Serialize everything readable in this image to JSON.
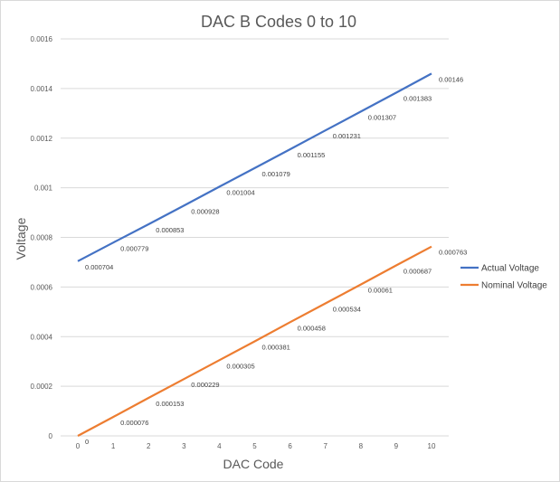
{
  "chart_data": {
    "type": "line",
    "title": "DAC B Codes 0 to 10",
    "xlabel": "DAC Code",
    "ylabel": "Voltage",
    "x": [
      0,
      1,
      2,
      3,
      4,
      5,
      6,
      7,
      8,
      9,
      10
    ],
    "x_tick_labels": [
      "0",
      "1",
      "2",
      "3",
      "4",
      "5",
      "6",
      "7",
      "8",
      "9",
      "10"
    ],
    "y_tick_labels": [
      "0",
      "0.0002",
      "0.0004",
      "0.0006",
      "0.0008",
      "0.001",
      "0.0012",
      "0.0014",
      "0.0016"
    ],
    "ylim": [
      0,
      0.0016
    ],
    "xlim": [
      0,
      10
    ],
    "grid": "horizontal",
    "legend_position": "right",
    "series": [
      {
        "name": "Actual Voltage",
        "color": "#4472c4",
        "values": [
          0.000704,
          0.000779,
          0.000853,
          0.000928,
          0.001004,
          0.001079,
          0.001155,
          0.001231,
          0.001307,
          0.001383,
          0.00146
        ],
        "data_labels": [
          "0.000704",
          "0.000779",
          "0.000853",
          "0.000928",
          "0.001004",
          "0.001079",
          "0.001155",
          "0.001231",
          "0.001307",
          "0.001383",
          "0.00146"
        ]
      },
      {
        "name": "Nominal Voltage",
        "color": "#ed7d31",
        "values": [
          0,
          7.6e-05,
          0.000153,
          0.000229,
          0.000305,
          0.000381,
          0.000458,
          0.000534,
          0.00061,
          0.000687,
          0.000763
        ],
        "data_labels": [
          "0",
          "0.000076",
          "0.000153",
          "0.000229",
          "0.000305",
          "0.000381",
          "0.000458",
          "0.000534",
          "0.00061",
          "0.000687",
          "0.000763"
        ]
      }
    ]
  }
}
